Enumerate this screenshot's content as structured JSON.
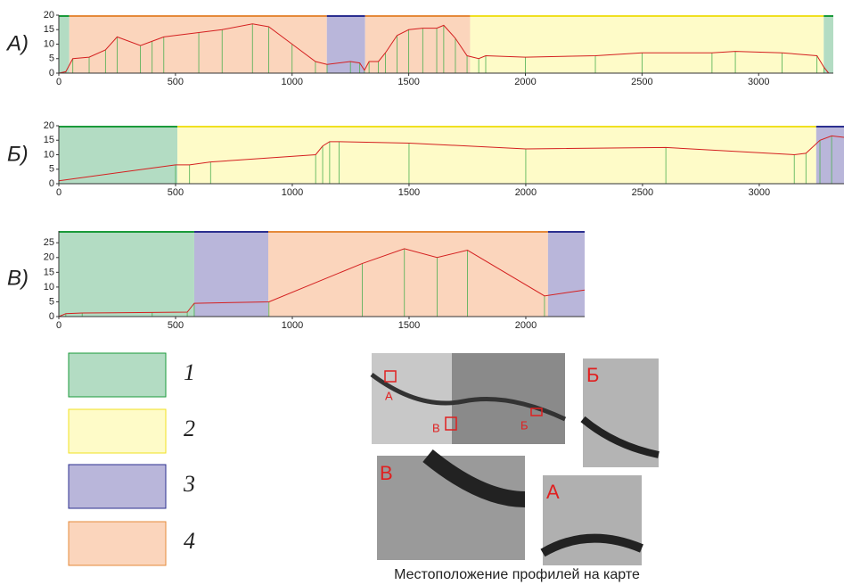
{
  "chart_data": [
    {
      "type": "line",
      "title": "А)",
      "color": "#d42020",
      "vertex_color": "#4caf50",
      "xlim": [
        0,
        3320
      ],
      "ylim": [
        0,
        20
      ],
      "xticks": [
        0,
        500,
        1000,
        1500,
        2000,
        2500,
        3000
      ],
      "yticks": [
        0,
        5,
        10,
        15,
        20
      ],
      "zones": [
        {
          "start": 0,
          "end": 45,
          "fill": "#b3dcc3",
          "stroke": "#1a9a3a"
        },
        {
          "start": 45,
          "end": 1149,
          "fill": "#fbd5bc",
          "stroke": "#e58a3a"
        },
        {
          "start": 1149,
          "end": 1313,
          "fill": "#b9b6da",
          "stroke": "#2b2f8f"
        },
        {
          "start": 1313,
          "end": 1763,
          "fill": "#fbd5bc",
          "stroke": "#e58a3a"
        },
        {
          "start": 1763,
          "end": 3279,
          "fill": "#fefbc8",
          "stroke": "#f0e020"
        },
        {
          "start": 3279,
          "end": 3320,
          "fill": "#b3dcc3",
          "stroke": "#1a9a3a"
        }
      ],
      "x": [
        0,
        30,
        60,
        130,
        200,
        250,
        350,
        400,
        450,
        600,
        700,
        830,
        900,
        1000,
        1100,
        1150,
        1250,
        1290,
        1310,
        1330,
        1370,
        1400,
        1450,
        1500,
        1560,
        1620,
        1650,
        1700,
        1750,
        1800,
        1830,
        2000,
        2300,
        2500,
        2800,
        2900,
        3100,
        3250,
        3280,
        3300
      ],
      "values": [
        0,
        0.5,
        5,
        5.5,
        8,
        12.5,
        9.5,
        11,
        12.5,
        14,
        15,
        17,
        16,
        10,
        4,
        3,
        4,
        3.5,
        1,
        4,
        4,
        7,
        13,
        15,
        15.5,
        15.5,
        16.5,
        12,
        6,
        5,
        6,
        5.5,
        6,
        7,
        7,
        7.5,
        7,
        6,
        2,
        0
      ]
    },
    {
      "type": "line",
      "title": "Б)",
      "color": "#d42020",
      "vertex_color": "#4caf50",
      "xlim": [
        0,
        3363
      ],
      "ylim": [
        0,
        20
      ],
      "xticks": [
        0,
        500,
        1000,
        1500,
        2000,
        2500,
        3000
      ],
      "yticks": [
        0,
        5,
        10,
        15,
        20
      ],
      "zones": [
        {
          "start": 0,
          "end": 508,
          "fill": "#b3dcc3",
          "stroke": "#1a9a3a"
        },
        {
          "start": 508,
          "end": 3244,
          "fill": "#fefbc8",
          "stroke": "#f0e020"
        },
        {
          "start": 3244,
          "end": 3363,
          "fill": "#b9b6da",
          "stroke": "#2b2f8f"
        }
      ],
      "x": [
        0,
        500,
        560,
        650,
        1100,
        1130,
        1160,
        1200,
        1500,
        2000,
        2600,
        3150,
        3200,
        3260,
        3310,
        3363
      ],
      "values": [
        1,
        6.5,
        6.5,
        7.5,
        10,
        13,
        14.5,
        14.5,
        14,
        12,
        12.5,
        10,
        10.5,
        15,
        16.5,
        16
      ]
    },
    {
      "type": "line",
      "title": "В)",
      "color": "#d42020",
      "vertex_color": "#4caf50",
      "xlim": [
        0,
        2252
      ],
      "ylim": [
        0,
        29
      ],
      "xticks": [
        0,
        500,
        1000,
        1500,
        2000
      ],
      "yticks": [
        0,
        5,
        10,
        15,
        20,
        25
      ],
      "zones": [
        {
          "start": 0,
          "end": 580,
          "fill": "#b3dcc3",
          "stroke": "#1a9a3a"
        },
        {
          "start": 580,
          "end": 897,
          "fill": "#b9b6da",
          "stroke": "#2b2f8f"
        },
        {
          "start": 897,
          "end": 2095,
          "fill": "#fbd5bc",
          "stroke": "#e58a3a"
        },
        {
          "start": 2095,
          "end": 2252,
          "fill": "#b9b6da",
          "stroke": "#2b2f8f"
        }
      ],
      "x": [
        0,
        30,
        100,
        400,
        550,
        580,
        900,
        1300,
        1480,
        1620,
        1750,
        2080,
        2252
      ],
      "values": [
        0,
        1,
        1.2,
        1.4,
        1.5,
        4.5,
        5,
        18,
        23,
        20,
        22.5,
        7,
        9
      ]
    }
  ],
  "legend": [
    {
      "label": "1",
      "fill": "#b3dcc3",
      "stroke": "#1a9a3a"
    },
    {
      "label": "2",
      "fill": "#fefbc8",
      "stroke": "#f0e020"
    },
    {
      "label": "3",
      "fill": "#b9b6da",
      "stroke": "#2b2f8f"
    },
    {
      "label": "4",
      "fill": "#fbd5bc",
      "stroke": "#e58a3a"
    }
  ],
  "maps": {
    "caption": "Местоположение профилей на карте",
    "overview_labels": [
      "А",
      "Б",
      "В"
    ],
    "insets": [
      "Б",
      "В",
      "А"
    ]
  }
}
